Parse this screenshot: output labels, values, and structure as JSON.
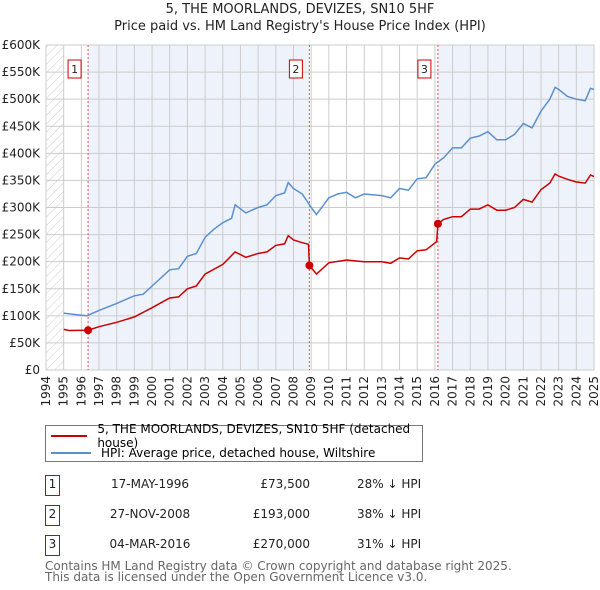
{
  "title": "5, THE MOORLANDS, DEVIZES, SN10 5HF",
  "subtitle": "Price paid vs. HM Land Registry's House Price Index (HPI)",
  "chart_data": {
    "type": "line",
    "ylim": [
      0,
      600000
    ],
    "xlim": [
      1994,
      2025
    ],
    "y_ticks": [
      {
        "v": 0,
        "label": "£0"
      },
      {
        "v": 50000,
        "label": "£50K"
      },
      {
        "v": 100000,
        "label": "£100K"
      },
      {
        "v": 150000,
        "label": "£150K"
      },
      {
        "v": 200000,
        "label": "£200K"
      },
      {
        "v": 250000,
        "label": "£250K"
      },
      {
        "v": 300000,
        "label": "£300K"
      },
      {
        "v": 350000,
        "label": "£350K"
      },
      {
        "v": 400000,
        "label": "£400K"
      },
      {
        "v": 450000,
        "label": "£450K"
      },
      {
        "v": 500000,
        "label": "£500K"
      },
      {
        "v": 550000,
        "label": "£550K"
      },
      {
        "v": 600000,
        "label": "£600K"
      }
    ],
    "x_ticks": [
      "1994",
      "1995",
      "1996",
      "1997",
      "1998",
      "1999",
      "2000",
      "2001",
      "2002",
      "2003",
      "2004",
      "2005",
      "2006",
      "2007",
      "2008",
      "2009",
      "2010",
      "2011",
      "2012",
      "2013",
      "2014",
      "2015",
      "2016",
      "2017",
      "2018",
      "2019",
      "2020",
      "2021",
      "2022",
      "2023",
      "2024",
      "2025"
    ],
    "grid": true,
    "series": [
      {
        "name": "5, THE MOORLANDS, DEVIZES, SN10 5HF (detached house)",
        "color": "#cc0000",
        "x": [
          1995,
          1995.3,
          1996.38,
          1997,
          1998,
          1999,
          2000,
          2001,
          2001.5,
          2002,
          2002.5,
          2003,
          2004,
          2004.7,
          2005.3,
          2006,
          2006.5,
          2007,
          2007.5,
          2007.7,
          2008,
          2008.5,
          2008.85,
          2008.9,
          2009.3,
          2010,
          2011,
          2012,
          2013,
          2013.5,
          2014,
          2014.5,
          2015,
          2015.5,
          2016.1,
          2016.17,
          2016.5,
          2017,
          2017.5,
          2018,
          2018.5,
          2019,
          2019.5,
          2020,
          2020.5,
          2021,
          2021.5,
          2022,
          2022.5,
          2022.8,
          2023,
          2023.5,
          2024,
          2024.5,
          2024.8,
          2025
        ],
        "y": [
          75000,
          73000,
          73500,
          80000,
          88000,
          98000,
          115000,
          133000,
          135000,
          150000,
          155000,
          177000,
          195000,
          218000,
          208000,
          215000,
          218000,
          230000,
          233000,
          248000,
          240000,
          235000,
          232000,
          193000,
          177000,
          198000,
          203000,
          200000,
          200000,
          197000,
          207000,
          205000,
          220000,
          222000,
          237000,
          270000,
          278000,
          283000,
          283000,
          297000,
          297000,
          305000,
          295000,
          295000,
          300000,
          315000,
          310000,
          333000,
          345000,
          362000,
          358000,
          352000,
          347000,
          345000,
          360000,
          357000
        ]
      },
      {
        "name": "HPI: Average price, detached house, Wiltshire",
        "color": "#5b8fd0",
        "x": [
          1995,
          1995.5,
          1996.3,
          1997,
          1998,
          1999,
          1999.5,
          2000,
          2001,
          2001.5,
          2002,
          2002.5,
          2003,
          2003.5,
          2004,
          2004.5,
          2004.7,
          2005.3,
          2006,
          2006.5,
          2007,
          2007.5,
          2007.7,
          2008,
          2008.5,
          2009,
          2009.3,
          2010,
          2010.5,
          2011,
          2011.5,
          2012,
          2013,
          2013.5,
          2014,
          2014.5,
          2015,
          2015.5,
          2016,
          2016.5,
          2017,
          2017.5,
          2018,
          2018.5,
          2019,
          2019.5,
          2020,
          2020.5,
          2021,
          2021.5,
          2022,
          2022.5,
          2022.8,
          2023,
          2023.5,
          2024,
          2024.5,
          2024.8,
          2025
        ],
        "y": [
          105000,
          103000,
          100000,
          110000,
          123000,
          137000,
          140000,
          155000,
          185000,
          187000,
          210000,
          215000,
          245000,
          260000,
          272000,
          280000,
          305000,
          290000,
          300000,
          305000,
          322000,
          327000,
          346000,
          335000,
          325000,
          300000,
          287000,
          318000,
          325000,
          328000,
          318000,
          325000,
          322000,
          318000,
          335000,
          332000,
          353000,
          355000,
          380000,
          392000,
          410000,
          410000,
          428000,
          432000,
          440000,
          425000,
          425000,
          435000,
          455000,
          447000,
          478000,
          500000,
          522000,
          518000,
          505000,
          500000,
          497000,
          520000,
          518000
        ]
      }
    ],
    "sales": [
      {
        "n": "1",
        "x": 1996.38,
        "y": 73500,
        "date": "17-MAY-1996",
        "price": "£73,500",
        "hpi": "28% ↓ HPI"
      },
      {
        "n": "2",
        "x": 2008.9,
        "y": 193000,
        "date": "27-NOV-2008",
        "price": "£193,000",
        "hpi": "38% ↓ HPI"
      },
      {
        "n": "3",
        "x": 2016.17,
        "y": 270000,
        "date": "04-MAR-2016",
        "price": "£270,000",
        "hpi": "31% ↓ HPI"
      }
    ],
    "legend_position": "bottom"
  },
  "footer": [
    "Contains HM Land Registry data © Crown copyright and database right 2025.",
    "This data is licensed under the Open Government Licence v3.0."
  ]
}
